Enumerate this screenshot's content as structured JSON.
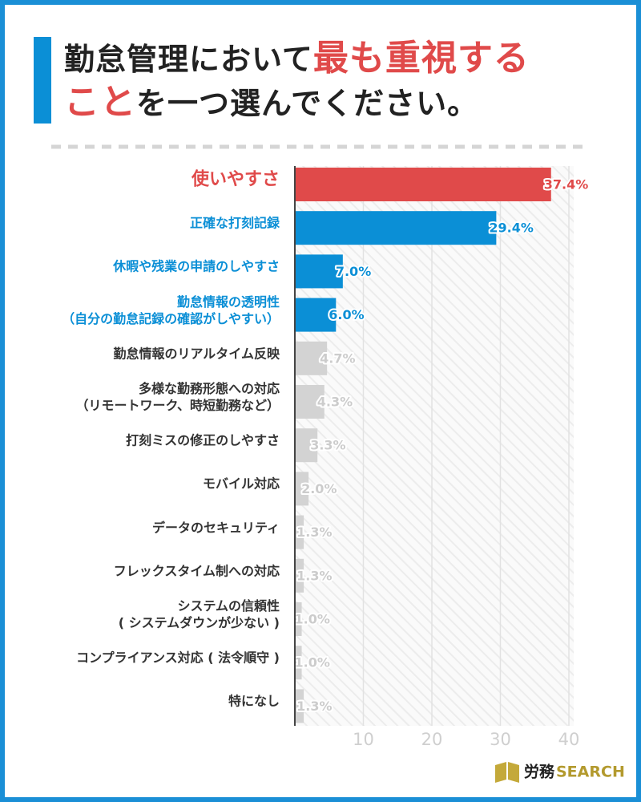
{
  "title_lines": [
    [
      {
        "text": "勤怠管理において",
        "color": "#222222"
      },
      {
        "text": "最も重視する",
        "color": "#e04a4a"
      }
    ],
    [
      {
        "text": "こと",
        "color": "#e04a4a"
      },
      {
        "text": "を一つ選んでください。",
        "color": "#222222"
      }
    ]
  ],
  "chart_data": {
    "type": "bar",
    "orientation": "horizontal",
    "categories": [
      "使いやすさ",
      "正確な打刻記録",
      "休暇や残業の申請のしやすさ",
      "勤怠情報の透明性\n（自分の勤怠記録の確認がしやすい）",
      "勤怠情報のリアルタイム反映",
      "多様な勤務形態への対応\n（リモートワーク、時短勤務など）",
      "打刻ミスの修正のしやすさ",
      "モバイル対応",
      "データのセキュリティ",
      "フレックスタイム制への対応",
      "システムの信頼性\n( システムダウンが少ない )",
      "コンプライアンス対応 ( 法令順守 )",
      "特になし"
    ],
    "values": [
      37.4,
      29.4,
      7.0,
      6.0,
      4.7,
      4.3,
      3.3,
      2.0,
      1.3,
      1.3,
      1.0,
      1.0,
      1.3
    ],
    "value_labels": [
      "37.4%",
      "29.4%",
      "7.0%",
      "6.0%",
      "4.7%",
      "4.3%",
      "3.3%",
      "2.0%",
      "1.3%",
      "1.3%",
      "1.0%",
      "1.0%",
      "1.3%"
    ],
    "colors": [
      "#e04a4a",
      "#0b8fd6",
      "#0b8fd6",
      "#0b8fd6",
      "#d3d3d3",
      "#d3d3d3",
      "#d3d3d3",
      "#d3d3d3",
      "#d3d3d3",
      "#d3d3d3",
      "#d3d3d3",
      "#d3d3d3",
      "#d3d3d3"
    ],
    "xlim": [
      0,
      40
    ],
    "xticks": [
      10,
      20,
      30,
      40
    ],
    "grid": true
  },
  "logo": [
    "労務",
    "SEARCH"
  ]
}
